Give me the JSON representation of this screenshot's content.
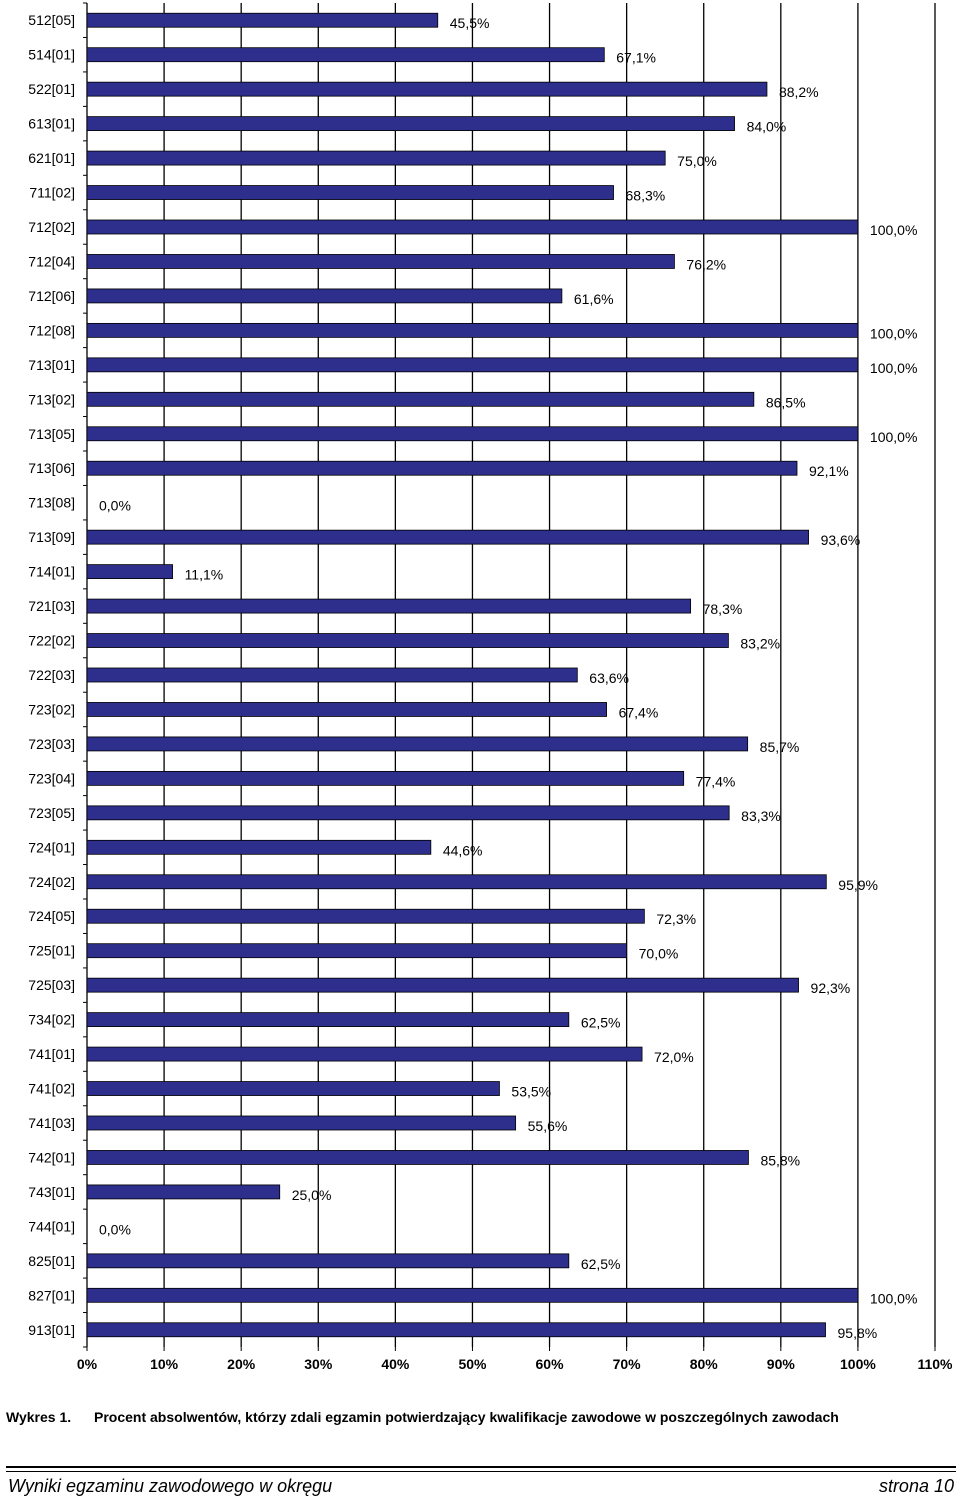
{
  "chart_data": {
    "type": "bar",
    "orientation": "horizontal",
    "categories": [
      "512[05]",
      "514[01]",
      "522[01]",
      "613[01]",
      "621[01]",
      "711[02]",
      "712[02]",
      "712[04]",
      "712[06]",
      "712[08]",
      "713[01]",
      "713[02]",
      "713[05]",
      "713[06]",
      "713[08]",
      "713[09]",
      "714[01]",
      "721[03]",
      "722[02]",
      "722[03]",
      "723[02]",
      "723[03]",
      "723[04]",
      "723[05]",
      "724[01]",
      "724[02]",
      "724[05]",
      "725[01]",
      "725[03]",
      "734[02]",
      "741[01]",
      "741[02]",
      "741[03]",
      "742[01]",
      "743[01]",
      "744[01]",
      "825[01]",
      "827[01]",
      "913[01]"
    ],
    "values": [
      45.5,
      67.1,
      88.2,
      84.0,
      75.0,
      68.3,
      100.0,
      76.2,
      61.6,
      100.0,
      100.0,
      86.5,
      100.0,
      92.1,
      0.0,
      93.6,
      11.1,
      78.3,
      83.2,
      63.6,
      67.4,
      85.7,
      77.4,
      83.3,
      44.6,
      95.9,
      72.3,
      70.0,
      92.3,
      62.5,
      72.0,
      53.5,
      55.6,
      85.8,
      25.0,
      0.0,
      62.5,
      100.0,
      95.8
    ],
    "value_labels": [
      "45,5%",
      "67,1%",
      "88,2%",
      "84,0%",
      "75,0%",
      "68,3%",
      "100,0%",
      "76,2%",
      "61,6%",
      "100,0%",
      "100,0%",
      "86,5%",
      "100,0%",
      "92,1%",
      "0,0%",
      "93,6%",
      "11,1%",
      "78,3%",
      "83,2%",
      "63,6%",
      "67,4%",
      "85,7%",
      "77,4%",
      "83,3%",
      "44,6%",
      "95,9%",
      "72,3%",
      "70,0%",
      "92,3%",
      "62,5%",
      "72,0%",
      "53,5%",
      "55,6%",
      "85,8%",
      "25,0%",
      "0,0%",
      "62,5%",
      "100,0%",
      "95,8%"
    ],
    "xlim": [
      0,
      110
    ],
    "x_ticks": [
      "0%",
      "10%",
      "20%",
      "30%",
      "40%",
      "50%",
      "60%",
      "70%",
      "80%",
      "90%",
      "100%",
      "110%"
    ],
    "grid": "vertical",
    "bar_color": "#2e2e8c",
    "title": "",
    "xlabel": "",
    "ylabel": ""
  },
  "caption": {
    "prefix": "Wykres 1.",
    "text": "Procent absolwentów, którzy zdali egzamin potwierdzający kwalifikacje zawodowe w poszczególnych zawodach"
  },
  "footer": {
    "left": "Wyniki egzaminu zawodowego w okręgu",
    "right": "strona 10"
  }
}
